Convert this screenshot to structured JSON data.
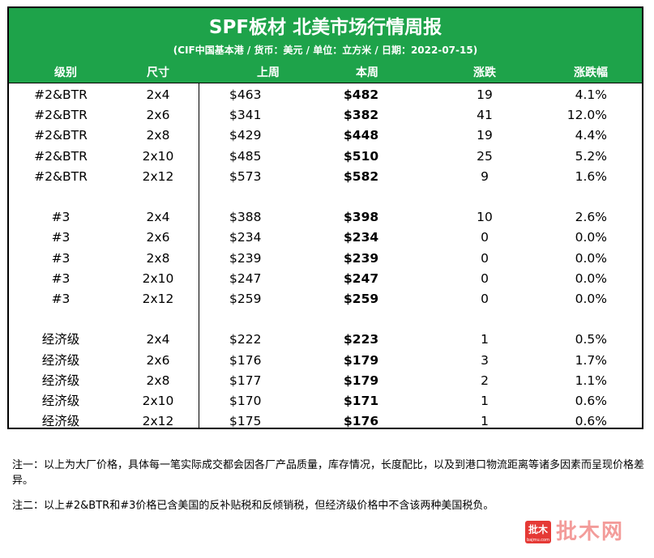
{
  "header": {
    "title": "SPF板材 北美市场行情周报",
    "subtitle": "(CIF中国基本港 / 货币：美元 / 单位：立方米 / 日期：2022-07-15)"
  },
  "columns": [
    "级别",
    "尺寸",
    "上周",
    "本周",
    "涨跌",
    "涨跌幅"
  ],
  "groups": [
    {
      "rows": [
        {
          "grade": "#2&BTR",
          "size": "2x4",
          "last": "$463",
          "current": "$482",
          "change": "19",
          "pct": "4.1%"
        },
        {
          "grade": "#2&BTR",
          "size": "2x6",
          "last": "$341",
          "current": "$382",
          "change": "41",
          "pct": "12.0%"
        },
        {
          "grade": "#2&BTR",
          "size": "2x8",
          "last": "$429",
          "current": "$448",
          "change": "19",
          "pct": "4.4%"
        },
        {
          "grade": "#2&BTR",
          "size": "2x10",
          "last": "$485",
          "current": "$510",
          "change": "25",
          "pct": "5.2%"
        },
        {
          "grade": "#2&BTR",
          "size": "2x12",
          "last": "$573",
          "current": "$582",
          "change": "9",
          "pct": "1.6%"
        }
      ]
    },
    {
      "rows": [
        {
          "grade": "#3",
          "size": "2x4",
          "last": "$388",
          "current": "$398",
          "change": "10",
          "pct": "2.6%"
        },
        {
          "grade": "#3",
          "size": "2x6",
          "last": "$234",
          "current": "$234",
          "change": "0",
          "pct": "0.0%"
        },
        {
          "grade": "#3",
          "size": "2x8",
          "last": "$239",
          "current": "$239",
          "change": "0",
          "pct": "0.0%"
        },
        {
          "grade": "#3",
          "size": "2x10",
          "last": "$247",
          "current": "$247",
          "change": "0",
          "pct": "0.0%"
        },
        {
          "grade": "#3",
          "size": "2x12",
          "last": "$259",
          "current": "$259",
          "change": "0",
          "pct": "0.0%"
        }
      ]
    },
    {
      "rows": [
        {
          "grade": "经济级",
          "size": "2x4",
          "last": "$222",
          "current": "$223",
          "change": "1",
          "pct": "0.5%"
        },
        {
          "grade": "经济级",
          "size": "2x6",
          "last": "$176",
          "current": "$179",
          "change": "3",
          "pct": "1.7%"
        },
        {
          "grade": "经济级",
          "size": "2x8",
          "last": "$177",
          "current": "$179",
          "change": "2",
          "pct": "1.1%"
        },
        {
          "grade": "经济级",
          "size": "2x10",
          "last": "$170",
          "current": "$171",
          "change": "1",
          "pct": "0.6%"
        },
        {
          "grade": "经济级",
          "size": "2x12",
          "last": "$175",
          "current": "$176",
          "change": "1",
          "pct": "0.6%"
        }
      ]
    }
  ],
  "notes": [
    "注一：以上为大厂价格，具体每一笔实际成交都会因各厂产品质量，库存情况，长度配比，以及到港口物流距离等诸多因素而呈现价格差异。",
    "注二：以上#2&BTR和#3价格已含美国的反补贴税和反倾销税，但经济级价格中不含该两种美国税负。"
  ],
  "watermark": {
    "badge": "批木",
    "badge_small": "bajmu.com",
    "text": "批木网"
  },
  "colors": {
    "header_bg": "#1ea34a",
    "header_text": "#ffffff",
    "logo_red": "#e53935"
  }
}
